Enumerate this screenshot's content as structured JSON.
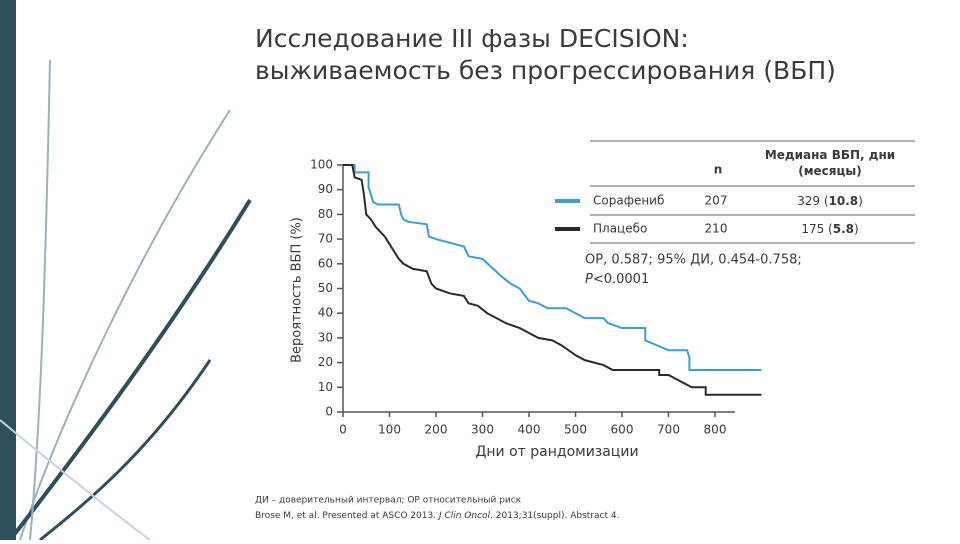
{
  "title": [
    "Исследование III фазы DECISION:",
    "выживаемость без прогрессирования (ВБП)"
  ],
  "chart_data": {
    "type": "line",
    "ylabel": "Вероятность ВБП (%)",
    "xlabel": "Дни от рандомизации",
    "xlim": [
      0,
      900
    ],
    "ylim": [
      0,
      100
    ],
    "xticks": [
      0,
      100,
      200,
      300,
      400,
      500,
      600,
      700,
      800
    ],
    "yticks": [
      0,
      10,
      20,
      30,
      40,
      50,
      60,
      70,
      80,
      90,
      100
    ],
    "series": [
      {
        "name": "Сорафениб",
        "color": "#3d9fd0",
        "x": [
          0,
          25,
          25,
          55,
          55,
          60,
          65,
          75,
          120,
          125,
          130,
          140,
          180,
          185,
          200,
          220,
          260,
          270,
          300,
          340,
          360,
          380,
          400,
          420,
          440,
          480,
          500,
          520,
          560,
          570,
          600,
          650,
          650,
          700,
          740,
          745,
          745,
          900
        ],
        "values": [
          100,
          100,
          97,
          97,
          91,
          88,
          85,
          84,
          84,
          80,
          78,
          77,
          76,
          71,
          70,
          69,
          67,
          63,
          62,
          55,
          52,
          50,
          45,
          44,
          42,
          42,
          40,
          38,
          38,
          36,
          34,
          34,
          29,
          25,
          25,
          22,
          17,
          17
        ]
      },
      {
        "name": "Плацебо",
        "color": "#2a2a2a",
        "x": [
          0,
          20,
          25,
          40,
          45,
          50,
          60,
          70,
          80,
          90,
          100,
          120,
          130,
          150,
          180,
          190,
          200,
          230,
          260,
          270,
          290,
          310,
          330,
          350,
          380,
          400,
          420,
          450,
          470,
          500,
          520,
          560,
          580,
          680,
          680,
          700,
          730,
          750,
          780,
          780,
          900
        ],
        "values": [
          100,
          100,
          95,
          94,
          88,
          80,
          78,
          75,
          73,
          71,
          68,
          62,
          60,
          58,
          57,
          52,
          50,
          48,
          47,
          44,
          43,
          40,
          38,
          36,
          34,
          32,
          30,
          29,
          27,
          23,
          21,
          19,
          17,
          17,
          15,
          15,
          12,
          10,
          10,
          7,
          7
        ]
      }
    ]
  },
  "table": {
    "header": [
      "n",
      "Медиана ВБП, дни (месяцы)"
    ],
    "rows": [
      [
        "207",
        {
          "pre": "329 (",
          "bold": "10.8",
          "post": ")"
        }
      ],
      [
        "210",
        {
          "pre": "175 (",
          "bold": "5.8",
          "post": ")"
        }
      ]
    ]
  },
  "annotation": {
    "line1": "ОР, 0.587; 95% ДИ, 0.454-0.758;",
    "p": "P",
    "p_rest": "<0.0001"
  },
  "footnote": {
    "line1": "ДИ – доверительный интервал; ОР относительный риск",
    "pre": "Brose M, et al. Presented at ASCO 2013. ",
    "journal": "J Clin Oncol",
    "post": ". 2013;31(suppl). Abstract 4."
  }
}
